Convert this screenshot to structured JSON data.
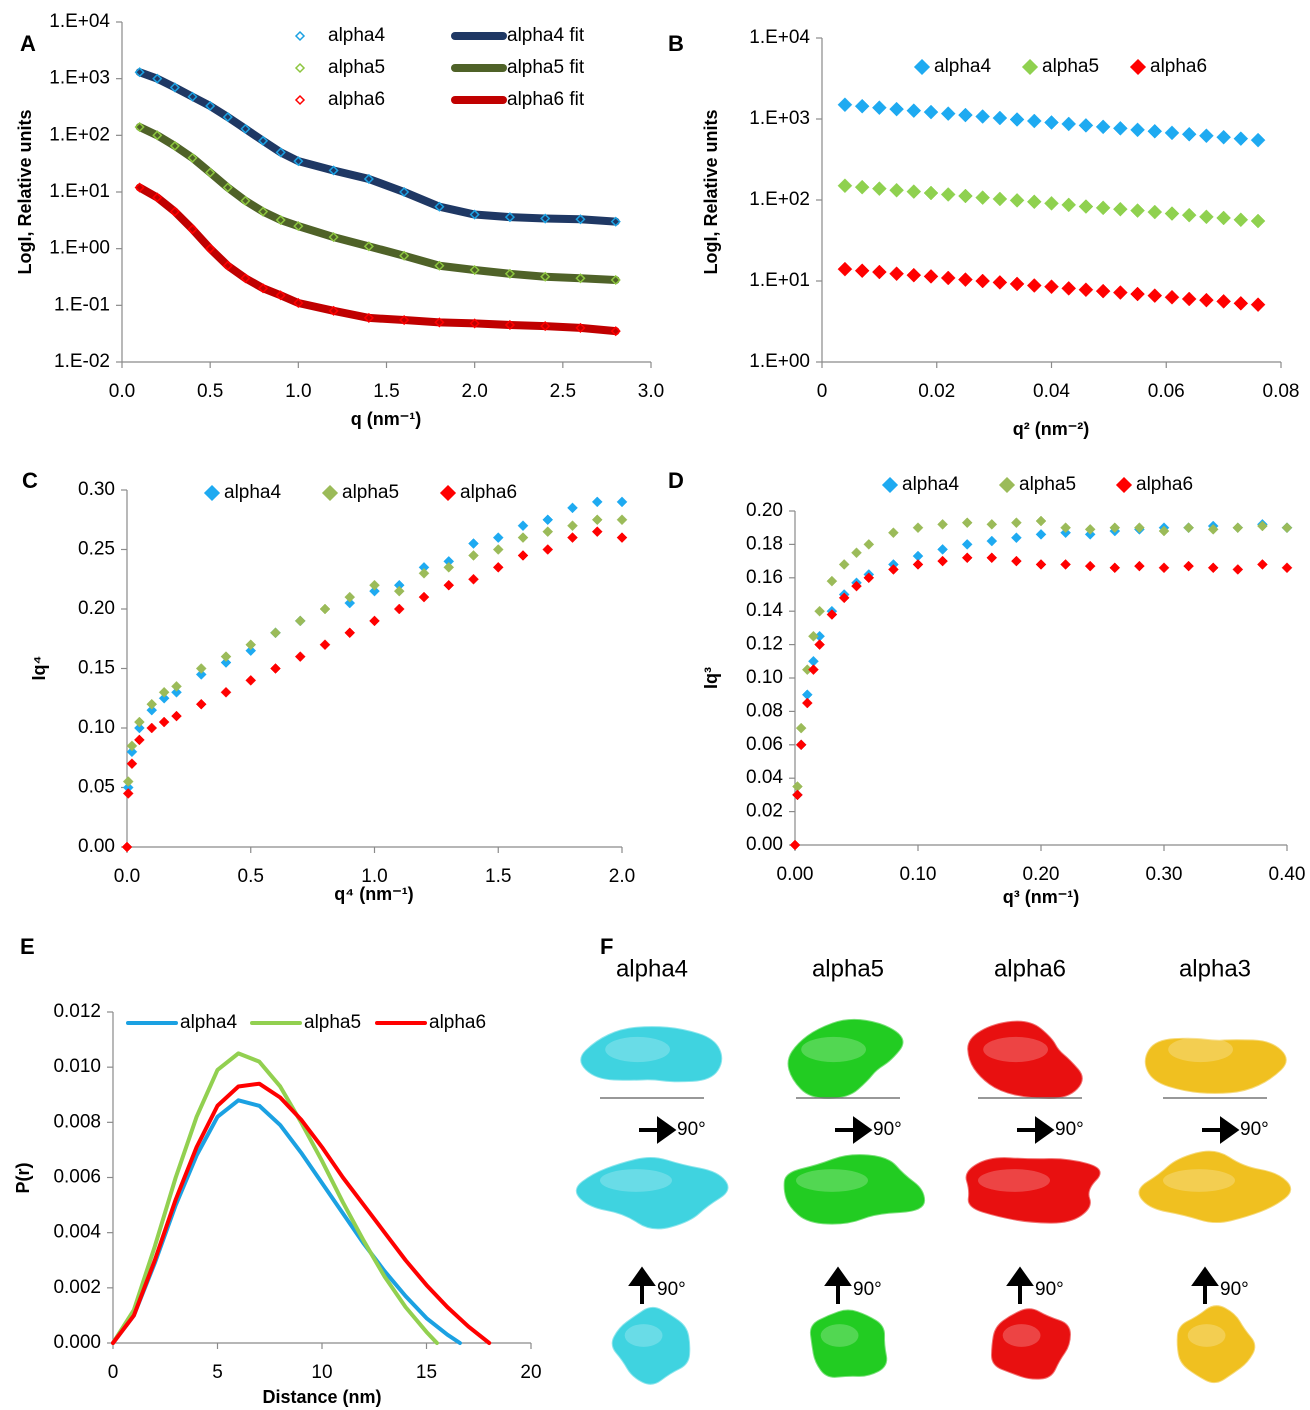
{
  "chart_data": [
    {
      "type": "scatter",
      "panel": "A",
      "y_label": "LogI, Relative units",
      "x_label": "q (nm⁻¹)",
      "ylog": true,
      "legend": "top",
      "xlim": [
        0,
        3
      ],
      "xticks": [
        {
          "value": 0,
          "label": "0.0"
        },
        0.5,
        {
          "value": 1,
          "label": "1.0"
        },
        1.5,
        {
          "value": 2,
          "label": "2.0"
        },
        2.5,
        {
          "value": 3,
          "label": "3.0"
        }
      ],
      "ylim": [
        0.01,
        10000
      ],
      "yticks": [
        {
          "value": 0.01,
          "label": "1.E-02"
        },
        {
          "value": 0.1,
          "label": "1.E-01"
        },
        {
          "value": 1,
          "label": "1.E+00"
        },
        {
          "value": 10,
          "label": "1.E+01"
        },
        {
          "value": 100,
          "label": "1.E+02"
        },
        {
          "value": 1000,
          "label": "1.E+03"
        },
        {
          "value": 10000,
          "label": "1.E+04"
        }
      ],
      "x": [
        0.1,
        0.2,
        0.3,
        0.4,
        0.5,
        0.6,
        0.7,
        0.8,
        0.9,
        1.0,
        1.2,
        1.4,
        1.6,
        1.8,
        2.0,
        2.2,
        2.4,
        2.6,
        2.8
      ],
      "series": [
        {
          "name": "alpha4",
          "color": "#1ba1e2",
          "marker": "open-diamond",
          "values": [
            1300,
            1000,
            700,
            480,
            330,
            210,
            130,
            80,
            50,
            35,
            24,
            17,
            10,
            5.5,
            4,
            3.6,
            3.4,
            3.3,
            3
          ]
        },
        {
          "name": "alpha5",
          "color": "#8dc63f",
          "marker": "open-diamond",
          "values": [
            140,
            100,
            65,
            40,
            22,
            12,
            7,
            4.5,
            3.2,
            2.5,
            1.6,
            1.1,
            0.75,
            0.5,
            0.42,
            0.36,
            0.32,
            0.3,
            0.28
          ]
        },
        {
          "name": "alpha6",
          "color": "#ff0000",
          "marker": "open-diamond",
          "values": [
            12,
            8,
            4.5,
            2.2,
            1.0,
            0.5,
            0.3,
            0.2,
            0.15,
            0.11,
            0.08,
            0.06,
            0.055,
            0.05,
            0.048,
            0.045,
            0.043,
            0.04,
            0.035
          ]
        },
        {
          "name": "alpha4 fit",
          "color": "#1f3864",
          "style": "line",
          "values": [
            1300,
            1000,
            700,
            480,
            330,
            210,
            130,
            80,
            50,
            35,
            24,
            17,
            10,
            5.5,
            4,
            3.6,
            3.4,
            3.3,
            3
          ]
        },
        {
          "name": "alpha5 fit",
          "color": "#4f6228",
          "style": "line",
          "values": [
            140,
            100,
            65,
            40,
            22,
            12,
            7,
            4.5,
            3.2,
            2.5,
            1.6,
            1.1,
            0.75,
            0.5,
            0.42,
            0.36,
            0.32,
            0.3,
            0.28
          ]
        },
        {
          "name": "alpha6 fit",
          "color": "#c00000",
          "style": "line",
          "values": [
            12,
            8,
            4.5,
            2.2,
            1.0,
            0.5,
            0.3,
            0.2,
            0.15,
            0.11,
            0.08,
            0.06,
            0.055,
            0.05,
            0.048,
            0.045,
            0.043,
            0.04,
            0.035
          ]
        }
      ]
    },
    {
      "type": "scatter",
      "panel": "B",
      "y_label": "LogI, Relative units",
      "x_label": "q² (nm⁻²)",
      "ylog": true,
      "legend": "top",
      "xlim": [
        0,
        0.08
      ],
      "xticks": [
        0,
        0.02,
        0.04,
        0.06,
        0.08
      ],
      "ylim": [
        1,
        10000
      ],
      "yticks": [
        {
          "value": 1,
          "label": "1.E+00"
        },
        {
          "value": 10,
          "label": "1.E+01"
        },
        {
          "value": 100,
          "label": "1.E+02"
        },
        {
          "value": 1000,
          "label": "1.E+03"
        },
        {
          "value": 10000,
          "label": "1.E+04"
        }
      ],
      "x": [
        0.004,
        0.007,
        0.01,
        0.013,
        0.016,
        0.019,
        0.022,
        0.025,
        0.028,
        0.031,
        0.034,
        0.037,
        0.04,
        0.043,
        0.046,
        0.049,
        0.052,
        0.055,
        0.058,
        0.061,
        0.064,
        0.067,
        0.07,
        0.073,
        0.076
      ],
      "series": [
        {
          "name": "alpha4",
          "color": "#1eaaf1",
          "marker": "diamond",
          "values": [
            1500,
            1439,
            1379,
            1323,
            1268,
            1217,
            1166,
            1118,
            1073,
            1028,
            986,
            945,
            906,
            869,
            834,
            800,
            767,
            735,
            705,
            675,
            648,
            621,
            596,
            572,
            548
          ]
        },
        {
          "name": "alpha5",
          "color": "#8fd14f",
          "marker": "diamond",
          "values": [
            150,
            144,
            138,
            132,
            127,
            122,
            117,
            112,
            107,
            103,
            99,
            95,
            91,
            87,
            83,
            80,
            77,
            74,
            71,
            68,
            65,
            62,
            60,
            57,
            55
          ]
        },
        {
          "name": "alpha6",
          "color": "#ff0000",
          "marker": "diamond",
          "values": [
            14,
            13.4,
            12.9,
            12.3,
            11.8,
            11.4,
            10.9,
            10.4,
            10.0,
            9.6,
            9.2,
            8.8,
            8.5,
            8.1,
            7.8,
            7.5,
            7.2,
            6.9,
            6.6,
            6.3,
            6.0,
            5.8,
            5.6,
            5.3,
            5.1
          ]
        }
      ]
    },
    {
      "type": "scatter",
      "panel": "C",
      "y_label": "Iq⁴",
      "x_label": "q⁴ (nm⁻¹)",
      "legend": "top",
      "xlim": [
        0,
        2
      ],
      "xticks": [
        {
          "value": 0,
          "label": "0.0"
        },
        0.5,
        {
          "value": 1,
          "label": "1.0"
        },
        1.5,
        {
          "value": 2,
          "label": "2.0"
        }
      ],
      "ylim": [
        0,
        0.3
      ],
      "yticks": [
        {
          "value": 0,
          "label": "0.00"
        },
        0.05,
        {
          "value": 0.1,
          "label": "0.10"
        },
        0.15,
        {
          "value": 0.2,
          "label": "0.20"
        },
        0.25,
        {
          "value": 0.3,
          "label": "0.30"
        }
      ],
      "x": [
        0,
        0.005,
        0.02,
        0.05,
        0.1,
        0.15,
        0.2,
        0.3,
        0.4,
        0.5,
        0.6,
        0.7,
        0.8,
        0.9,
        1.0,
        1.1,
        1.2,
        1.3,
        1.4,
        1.5,
        1.6,
        1.7,
        1.8,
        1.9,
        2.0
      ],
      "series": [
        {
          "name": "alpha4",
          "color": "#1eaaf1",
          "marker": "diamond",
          "values": [
            0,
            0.05,
            0.08,
            0.1,
            0.115,
            0.125,
            0.13,
            0.145,
            0.155,
            0.165,
            0.18,
            0.19,
            0.2,
            0.205,
            0.215,
            0.22,
            0.235,
            0.24,
            0.255,
            0.26,
            0.27,
            0.275,
            0.285,
            0.29,
            0.29
          ]
        },
        {
          "name": "alpha5",
          "color": "#9bbb59",
          "marker": "diamond",
          "values": [
            0,
            0.055,
            0.085,
            0.105,
            0.12,
            0.13,
            0.135,
            0.15,
            0.16,
            0.17,
            0.18,
            0.19,
            0.2,
            0.21,
            0.22,
            0.215,
            0.23,
            0.235,
            0.245,
            0.25,
            0.26,
            0.265,
            0.27,
            0.275,
            0.275
          ]
        },
        {
          "name": "alpha6",
          "color": "#ff0000",
          "marker": "diamond",
          "values": [
            0,
            0.045,
            0.07,
            0.09,
            0.1,
            0.105,
            0.11,
            0.12,
            0.13,
            0.14,
            0.15,
            0.16,
            0.17,
            0.18,
            0.19,
            0.2,
            0.21,
            0.22,
            0.225,
            0.235,
            0.245,
            0.25,
            0.26,
            0.265,
            0.26
          ]
        }
      ]
    },
    {
      "type": "scatter",
      "panel": "D",
      "y_label": "Iq³",
      "x_label": "q³ (nm⁻¹)",
      "legend": "top",
      "xlim": [
        0,
        0.4
      ],
      "xticks": [
        {
          "value": 0,
          "label": "0.00"
        },
        {
          "value": 0.1,
          "label": "0.10"
        },
        {
          "value": 0.2,
          "label": "0.20"
        },
        {
          "value": 0.3,
          "label": "0.30"
        },
        {
          "value": 0.4,
          "label": "0.40"
        }
      ],
      "ylim": [
        0,
        0.2
      ],
      "yticks": [
        {
          "value": 0,
          "label": "0.00"
        },
        0.02,
        0.04,
        0.06,
        0.08,
        {
          "value": 0.1,
          "label": "0.10"
        },
        0.12,
        0.14,
        0.16,
        0.18,
        {
          "value": 0.2,
          "label": "0.20"
        }
      ],
      "x": [
        0,
        0.002,
        0.005,
        0.01,
        0.015,
        0.02,
        0.03,
        0.04,
        0.05,
        0.06,
        0.08,
        0.1,
        0.12,
        0.14,
        0.16,
        0.18,
        0.2,
        0.22,
        0.24,
        0.26,
        0.28,
        0.3,
        0.32,
        0.34,
        0.36,
        0.38,
        0.4
      ],
      "series": [
        {
          "name": "alpha4",
          "color": "#1eaaf1",
          "marker": "diamond",
          "values": [
            0,
            0.03,
            0.06,
            0.09,
            0.11,
            0.125,
            0.14,
            0.15,
            0.157,
            0.162,
            0.168,
            0.173,
            0.177,
            0.18,
            0.182,
            0.184,
            0.186,
            0.187,
            0.186,
            0.188,
            0.189,
            0.19,
            0.19,
            0.191,
            0.19,
            0.192,
            0.19
          ]
        },
        {
          "name": "alpha5",
          "color": "#9bbb59",
          "marker": "diamond",
          "values": [
            0,
            0.035,
            0.07,
            0.105,
            0.125,
            0.14,
            0.158,
            0.168,
            0.175,
            0.18,
            0.187,
            0.19,
            0.192,
            0.193,
            0.192,
            0.193,
            0.194,
            0.19,
            0.189,
            0.19,
            0.19,
            0.188,
            0.19,
            0.189,
            0.19,
            0.191,
            0.19
          ]
        },
        {
          "name": "alpha6",
          "color": "#ff0000",
          "marker": "diamond",
          "values": [
            0,
            0.03,
            0.06,
            0.085,
            0.105,
            0.12,
            0.138,
            0.148,
            0.155,
            0.16,
            0.165,
            0.168,
            0.17,
            0.172,
            0.172,
            0.17,
            0.168,
            0.168,
            0.167,
            0.166,
            0.167,
            0.166,
            0.167,
            0.166,
            0.165,
            0.168,
            0.166
          ]
        }
      ]
    },
    {
      "type": "line",
      "panel": "E",
      "y_label": "P(r)",
      "x_label": "Distance (nm)",
      "legend": "upper left",
      "xlim": [
        0,
        20
      ],
      "xticks": [
        0,
        5,
        10,
        15,
        20
      ],
      "ylim": [
        0,
        0.012
      ],
      "yticks": [
        {
          "value": 0,
          "label": "0.000"
        },
        0.002,
        0.004,
        0.006,
        0.008,
        {
          "value": 0.01,
          "label": "0.010"
        },
        0.012
      ],
      "series": [
        {
          "name": "alpha4",
          "color": "#1ba1e2",
          "x": [
            0,
            1,
            2,
            3,
            4,
            5,
            6,
            7,
            8,
            9,
            10,
            11,
            12,
            13,
            14,
            15,
            16,
            16.6
          ],
          "values": [
            0,
            0.001,
            0.0029,
            0.005,
            0.0068,
            0.0082,
            0.0088,
            0.0086,
            0.0079,
            0.0069,
            0.0058,
            0.0047,
            0.0036,
            0.0026,
            0.0017,
            0.0009,
            0.0003,
            0
          ]
        },
        {
          "name": "alpha5",
          "color": "#92d050",
          "x": [
            0,
            1,
            2,
            3,
            4,
            5,
            6,
            7,
            8,
            9,
            10,
            11,
            12,
            13,
            14,
            15,
            15.5
          ],
          "values": [
            0,
            0.0012,
            0.0035,
            0.006,
            0.0082,
            0.0099,
            0.0105,
            0.0102,
            0.0093,
            0.008,
            0.0066,
            0.0051,
            0.0037,
            0.0024,
            0.0013,
            0.0004,
            0
          ]
        },
        {
          "name": "alpha6",
          "color": "#ff0000",
          "x": [
            0,
            1,
            2,
            3,
            4,
            5,
            6,
            7,
            8,
            9,
            10,
            11,
            12,
            13,
            14,
            15,
            16,
            17,
            18
          ],
          "values": [
            0,
            0.001,
            0.003,
            0.0052,
            0.0071,
            0.0086,
            0.0093,
            0.0094,
            0.0089,
            0.0081,
            0.0071,
            0.006,
            0.005,
            0.004,
            0.003,
            0.0021,
            0.0013,
            0.0006,
            0
          ]
        }
      ]
    }
  ],
  "molecular_models": {
    "panel": "F",
    "columns": [
      {
        "label": "alpha4",
        "color": "#3fd3e0",
        "rotations": [
          "90°",
          "90°"
        ]
      },
      {
        "label": "alpha5",
        "color": "#22cc22",
        "rotations": [
          "90°",
          "90°"
        ]
      },
      {
        "label": "alpha6",
        "color": "#e81010",
        "rotations": [
          "90°",
          "90°"
        ]
      },
      {
        "label": "alpha3",
        "color": "#f0c020",
        "rotations": [
          "90°",
          "90°"
        ]
      }
    ]
  }
}
